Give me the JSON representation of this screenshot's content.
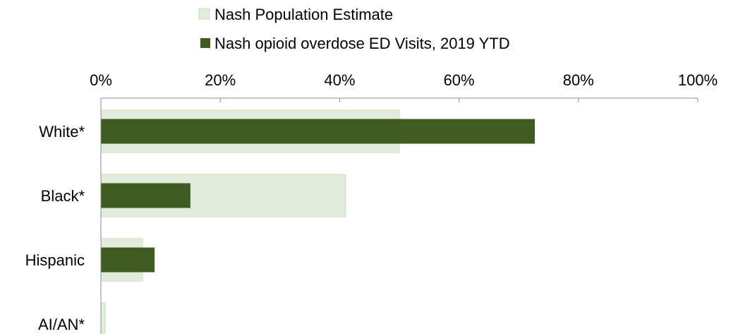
{
  "chart_data": {
    "type": "bar",
    "orientation": "horizontal",
    "categories": [
      "White*",
      "Black*",
      "Hispanic",
      "AI/AN*"
    ],
    "series": [
      {
        "name": "Nash Population Estimate",
        "values": [
          50,
          41,
          7,
          0.7
        ],
        "color": "#e2ecdc",
        "border": "#c9dfb7"
      },
      {
        "name": "Nash opioid overdose ED Visits, 2019 YTD",
        "values": [
          72.7,
          15,
          9,
          0
        ],
        "color": "#3f5d23"
      }
    ],
    "xlim": [
      0,
      100
    ],
    "xticks": [
      "0%",
      "20%",
      "40%",
      "60%",
      "80%",
      "100%"
    ],
    "xtick_values": [
      0,
      20,
      40,
      60,
      80,
      100
    ],
    "axis_position": "top",
    "legend_position": "top",
    "grid": false
  }
}
